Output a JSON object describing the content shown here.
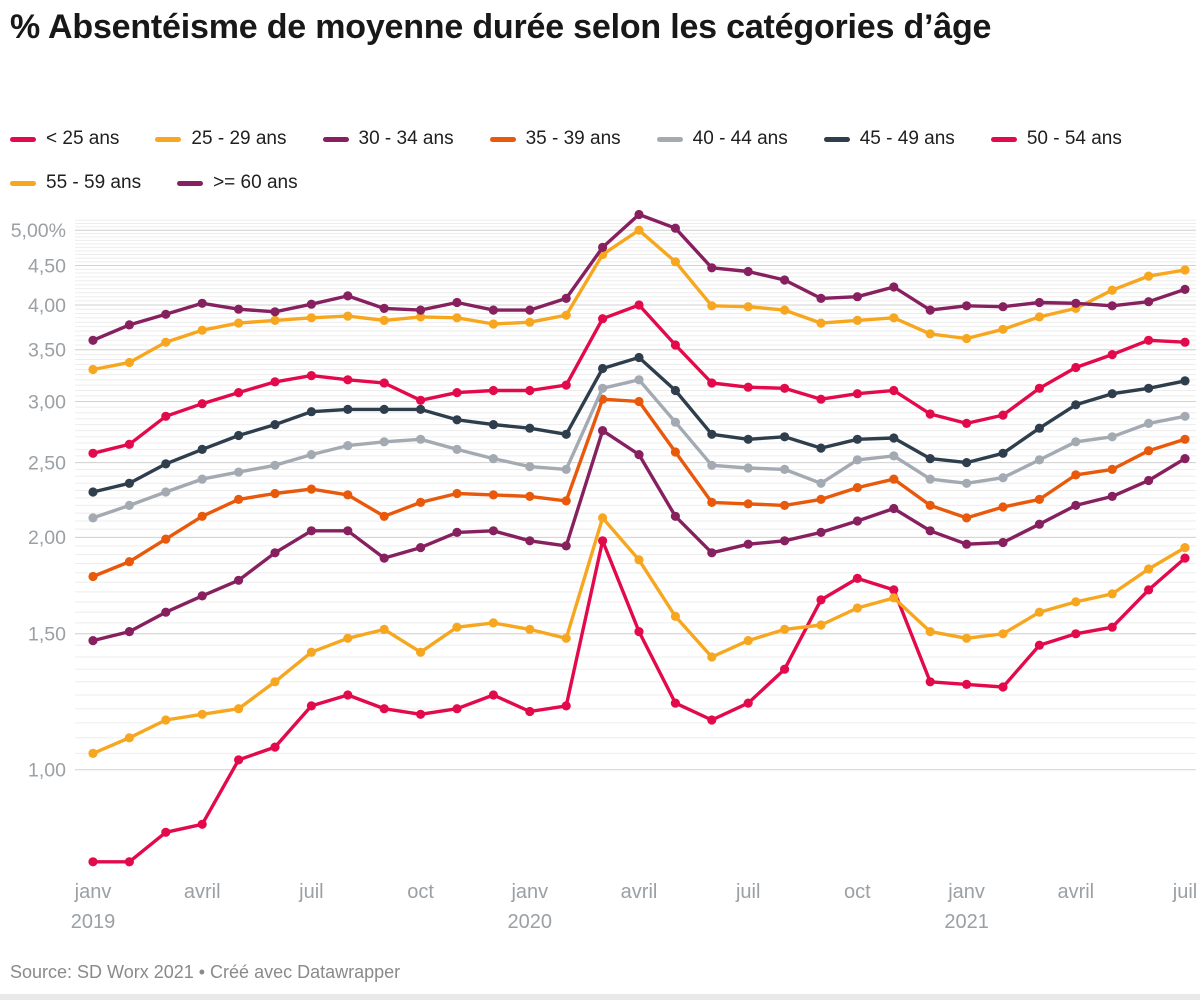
{
  "title": "% Absentéisme de moyenne durée selon les catégories d’âge",
  "footer": {
    "source_label": "Source: SD Worx 2021 • Créé avec Datawrapper"
  },
  "chart_data": {
    "type": "line",
    "x_unit": "month",
    "months": [
      "2019-01",
      "2019-02",
      "2019-03",
      "2019-04",
      "2019-05",
      "2019-06",
      "2019-07",
      "2019-08",
      "2019-09",
      "2019-10",
      "2019-11",
      "2019-12",
      "2020-01",
      "2020-02",
      "2020-03",
      "2020-04",
      "2020-05",
      "2020-06",
      "2020-07",
      "2020-08",
      "2020-09",
      "2020-10",
      "2020-11",
      "2020-12",
      "2021-01",
      "2021-02",
      "2021-03",
      "2021-04",
      "2021-05",
      "2021-06",
      "2021-07"
    ],
    "x_ticks": [
      {
        "index": 0,
        "label": "janv",
        "year": "2019"
      },
      {
        "index": 3,
        "label": "avril",
        "year": ""
      },
      {
        "index": 6,
        "label": "juil",
        "year": ""
      },
      {
        "index": 9,
        "label": "oct",
        "year": ""
      },
      {
        "index": 12,
        "label": "janv",
        "year": "2020"
      },
      {
        "index": 15,
        "label": "avril",
        "year": ""
      },
      {
        "index": 18,
        "label": "juil",
        "year": ""
      },
      {
        "index": 21,
        "label": "oct",
        "year": ""
      },
      {
        "index": 24,
        "label": "janv",
        "year": "2021"
      },
      {
        "index": 27,
        "label": "avril",
        "year": ""
      },
      {
        "index": 30,
        "label": "juil",
        "year": ""
      }
    ],
    "y_axis": {
      "scale": "log",
      "min_shown": 0.75,
      "max_shown": 5.25,
      "ticks": [
        {
          "v": 5,
          "label": "5,00%"
        },
        {
          "v": 4.5,
          "label": "4,50"
        },
        {
          "v": 4,
          "label": "4,00"
        },
        {
          "v": 3.5,
          "label": "3,50"
        },
        {
          "v": 3,
          "label": "3,00"
        },
        {
          "v": 2.5,
          "label": "2,50"
        },
        {
          "v": 2,
          "label": "2,00"
        },
        {
          "v": 1.5,
          "label": "1,50"
        },
        {
          "v": 1,
          "label": "1,00"
        }
      ],
      "grid": "on",
      "minor_step": 0.05
    },
    "legend_position": "top",
    "series": [
      {
        "name": "< 25 ans",
        "color": "#e30a4c",
        "values": [
          0.76,
          0.76,
          0.83,
          0.85,
          1.03,
          1.07,
          1.21,
          1.25,
          1.2,
          1.18,
          1.2,
          1.25,
          1.19,
          1.21,
          1.98,
          1.51,
          1.22,
          1.16,
          1.22,
          1.35,
          1.66,
          1.77,
          1.71,
          1.3,
          1.29,
          1.28,
          1.45,
          1.5,
          1.53,
          1.71,
          1.88
        ]
      },
      {
        "name": "25 - 29 ans",
        "color": "#f6a71f",
        "values": [
          1.05,
          1.1,
          1.16,
          1.18,
          1.2,
          1.3,
          1.42,
          1.48,
          1.52,
          1.42,
          1.53,
          1.55,
          1.52,
          1.48,
          2.12,
          1.87,
          1.58,
          1.4,
          1.47,
          1.52,
          1.54,
          1.62,
          1.67,
          1.51,
          1.48,
          1.5,
          1.6,
          1.65,
          1.69,
          1.82,
          1.94
        ]
      },
      {
        "name": "30 - 34 ans",
        "color": "#86205f",
        "values": [
          1.47,
          1.51,
          1.6,
          1.68,
          1.76,
          1.91,
          2.04,
          2.04,
          1.88,
          1.94,
          2.03,
          2.04,
          1.98,
          1.95,
          2.75,
          2.56,
          2.13,
          1.91,
          1.96,
          1.98,
          2.03,
          2.1,
          2.18,
          2.04,
          1.96,
          1.97,
          2.08,
          2.2,
          2.26,
          2.37,
          2.53
        ]
      },
      {
        "name": "35 - 39 ans",
        "color": "#e8590c",
        "values": [
          1.78,
          1.86,
          1.99,
          2.13,
          2.24,
          2.28,
          2.31,
          2.27,
          2.13,
          2.22,
          2.28,
          2.27,
          2.26,
          2.23,
          3.02,
          3.0,
          2.58,
          2.22,
          2.21,
          2.2,
          2.24,
          2.32,
          2.38,
          2.2,
          2.12,
          2.19,
          2.24,
          2.41,
          2.45,
          2.59,
          2.68
        ]
      },
      {
        "name": "40 - 44 ans",
        "color": "#a3aab2",
        "values": [
          2.12,
          2.2,
          2.29,
          2.38,
          2.43,
          2.48,
          2.56,
          2.63,
          2.66,
          2.68,
          2.6,
          2.53,
          2.47,
          2.45,
          3.12,
          3.2,
          2.82,
          2.48,
          2.46,
          2.45,
          2.35,
          2.52,
          2.55,
          2.38,
          2.35,
          2.39,
          2.52,
          2.66,
          2.7,
          2.81,
          2.87
        ]
      },
      {
        "name": "45 - 49 ans",
        "color": "#2e3e4c",
        "values": [
          2.29,
          2.35,
          2.49,
          2.6,
          2.71,
          2.8,
          2.91,
          2.93,
          2.93,
          2.93,
          2.84,
          2.8,
          2.77,
          2.72,
          3.31,
          3.42,
          3.1,
          2.72,
          2.68,
          2.7,
          2.61,
          2.68,
          2.69,
          2.53,
          2.5,
          2.57,
          2.77,
          2.97,
          3.07,
          3.12,
          3.19
        ]
      },
      {
        "name": "50 - 54 ans",
        "color": "#e30a4c",
        "values": [
          2.57,
          2.64,
          2.87,
          2.98,
          3.08,
          3.18,
          3.24,
          3.2,
          3.17,
          3.01,
          3.08,
          3.1,
          3.1,
          3.15,
          3.84,
          4.0,
          3.55,
          3.17,
          3.13,
          3.12,
          3.02,
          3.07,
          3.1,
          2.89,
          2.81,
          2.88,
          3.12,
          3.32,
          3.45,
          3.6,
          3.58
        ]
      },
      {
        "name": "55 - 59 ans",
        "color": "#f6a71f",
        "values": [
          3.3,
          3.37,
          3.58,
          3.71,
          3.79,
          3.82,
          3.85,
          3.87,
          3.82,
          3.86,
          3.85,
          3.78,
          3.8,
          3.88,
          4.65,
          5.0,
          4.55,
          3.99,
          3.98,
          3.94,
          3.79,
          3.82,
          3.85,
          3.67,
          3.62,
          3.72,
          3.86,
          3.96,
          4.18,
          4.36,
          4.44
        ]
      },
      {
        "name": ">= 60 ans",
        "color": "#86205f",
        "values": [
          3.6,
          3.77,
          3.89,
          4.02,
          3.95,
          3.92,
          4.01,
          4.11,
          3.96,
          3.94,
          4.03,
          3.94,
          3.94,
          4.08,
          4.75,
          5.24,
          5.03,
          4.47,
          4.42,
          4.31,
          4.08,
          4.1,
          4.22,
          3.94,
          3.99,
          3.98,
          4.03,
          4.02,
          3.99,
          4.04,
          4.19
        ]
      }
    ],
    "style": {
      "minor_grid_color": "#ededed",
      "major_grid_color": "#d2d2d2",
      "axis_label_color": "#9aa0a4",
      "line_width": 3.4,
      "dot_radius": 4.6
    }
  }
}
